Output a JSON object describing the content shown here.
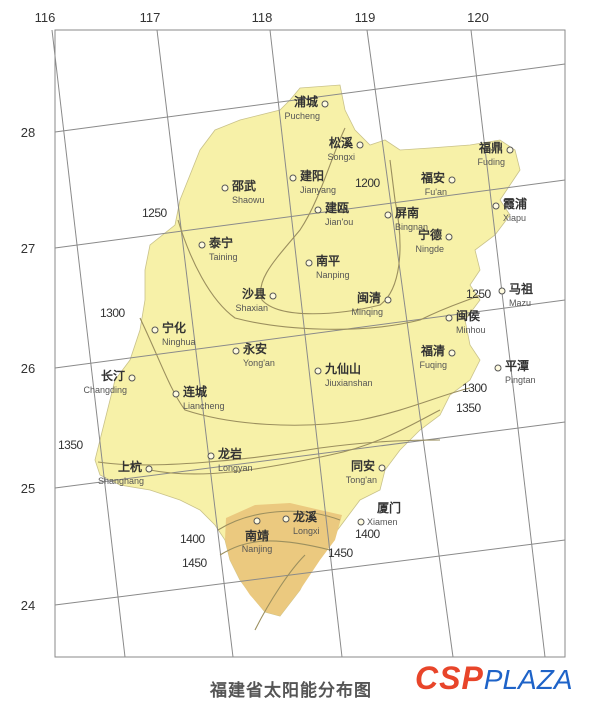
{
  "title": "福建省太阳能分布图",
  "logo": {
    "csp": "CSP",
    "plaza": "PLAZA"
  },
  "longitude_labels": [
    "116",
    "117",
    "118",
    "119",
    "120"
  ],
  "latitude_labels": [
    "28",
    "27",
    "26",
    "25",
    "24"
  ],
  "isoline_labels": [
    "1200",
    "1250",
    "1250",
    "1300",
    "1300",
    "1350",
    "1350",
    "1400",
    "1400",
    "1450",
    "1450"
  ],
  "colors": {
    "province": "#f7f1a8",
    "south_zone": "#ebc97f",
    "isoline": "#9b8f5e",
    "grid": "#8a8a8a"
  },
  "cities": [
    {
      "zh": "浦城",
      "en": "Pucheng"
    },
    {
      "zh": "松溪",
      "en": "Songxi"
    },
    {
      "zh": "福鼎",
      "en": "Fuding"
    },
    {
      "zh": "建阳",
      "en": "Jianyang"
    },
    {
      "zh": "邵武",
      "en": "Shaowu"
    },
    {
      "zh": "福安",
      "en": "Fu'an"
    },
    {
      "zh": "建瓯",
      "en": "Jian'ou"
    },
    {
      "zh": "屏南",
      "en": "Bingnan"
    },
    {
      "zh": "霞浦",
      "en": "Xiapu"
    },
    {
      "zh": "泰宁",
      "en": "Taining"
    },
    {
      "zh": "宁德",
      "en": "Ningde"
    },
    {
      "zh": "南平",
      "en": "Nanping"
    },
    {
      "zh": "马祖",
      "en": "Mazu"
    },
    {
      "zh": "沙县",
      "en": "Shaxian"
    },
    {
      "zh": "闽清",
      "en": "Minqing"
    },
    {
      "zh": "闽侯",
      "en": "Minhou"
    },
    {
      "zh": "宁化",
      "en": "Ninghua"
    },
    {
      "zh": "永安",
      "en": "Yong'an"
    },
    {
      "zh": "福清",
      "en": "Fuqing"
    },
    {
      "zh": "九仙山",
      "en": "Jiuxianshan"
    },
    {
      "zh": "平潭",
      "en": "Pingtan"
    },
    {
      "zh": "长汀",
      "en": "Changding"
    },
    {
      "zh": "连城",
      "en": "Liancheng"
    },
    {
      "zh": "龙岩",
      "en": "Longyan"
    },
    {
      "zh": "上杭",
      "en": "Shanghang"
    },
    {
      "zh": "同安",
      "en": "Tong'an"
    },
    {
      "zh": "龙溪",
      "en": "Longxi"
    },
    {
      "zh": "厦门",
      "en": "Xiamen"
    },
    {
      "zh": "南靖",
      "en": "Nanjing"
    }
  ]
}
